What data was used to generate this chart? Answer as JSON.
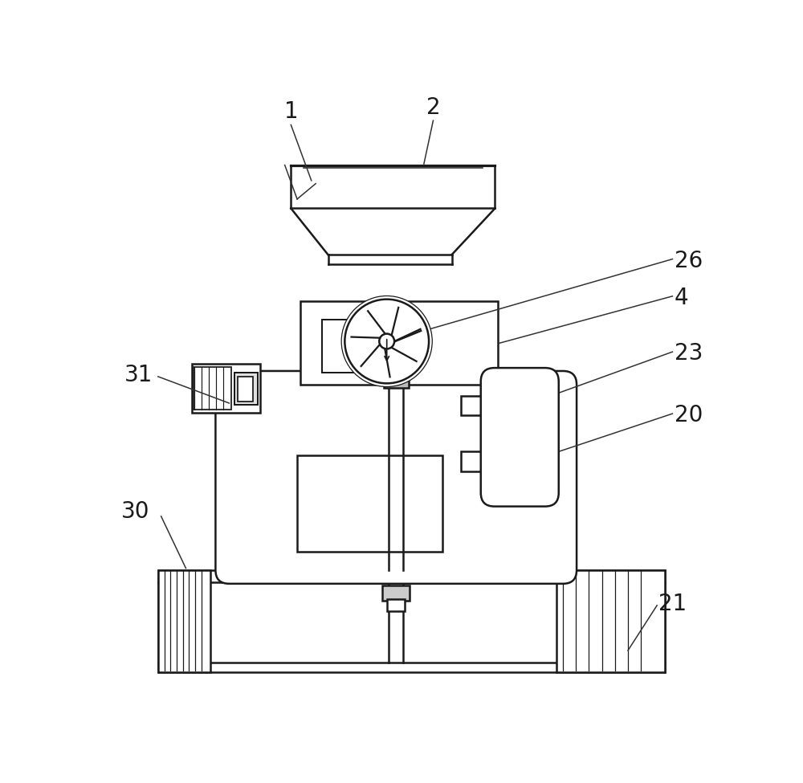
{
  "bg_color": "#ffffff",
  "line_color": "#1a1a1a",
  "label_color": "#1a1a1a",
  "label_fontsize": 20,
  "line_width": 1.8,
  "annotation_line_color": "#333333"
}
